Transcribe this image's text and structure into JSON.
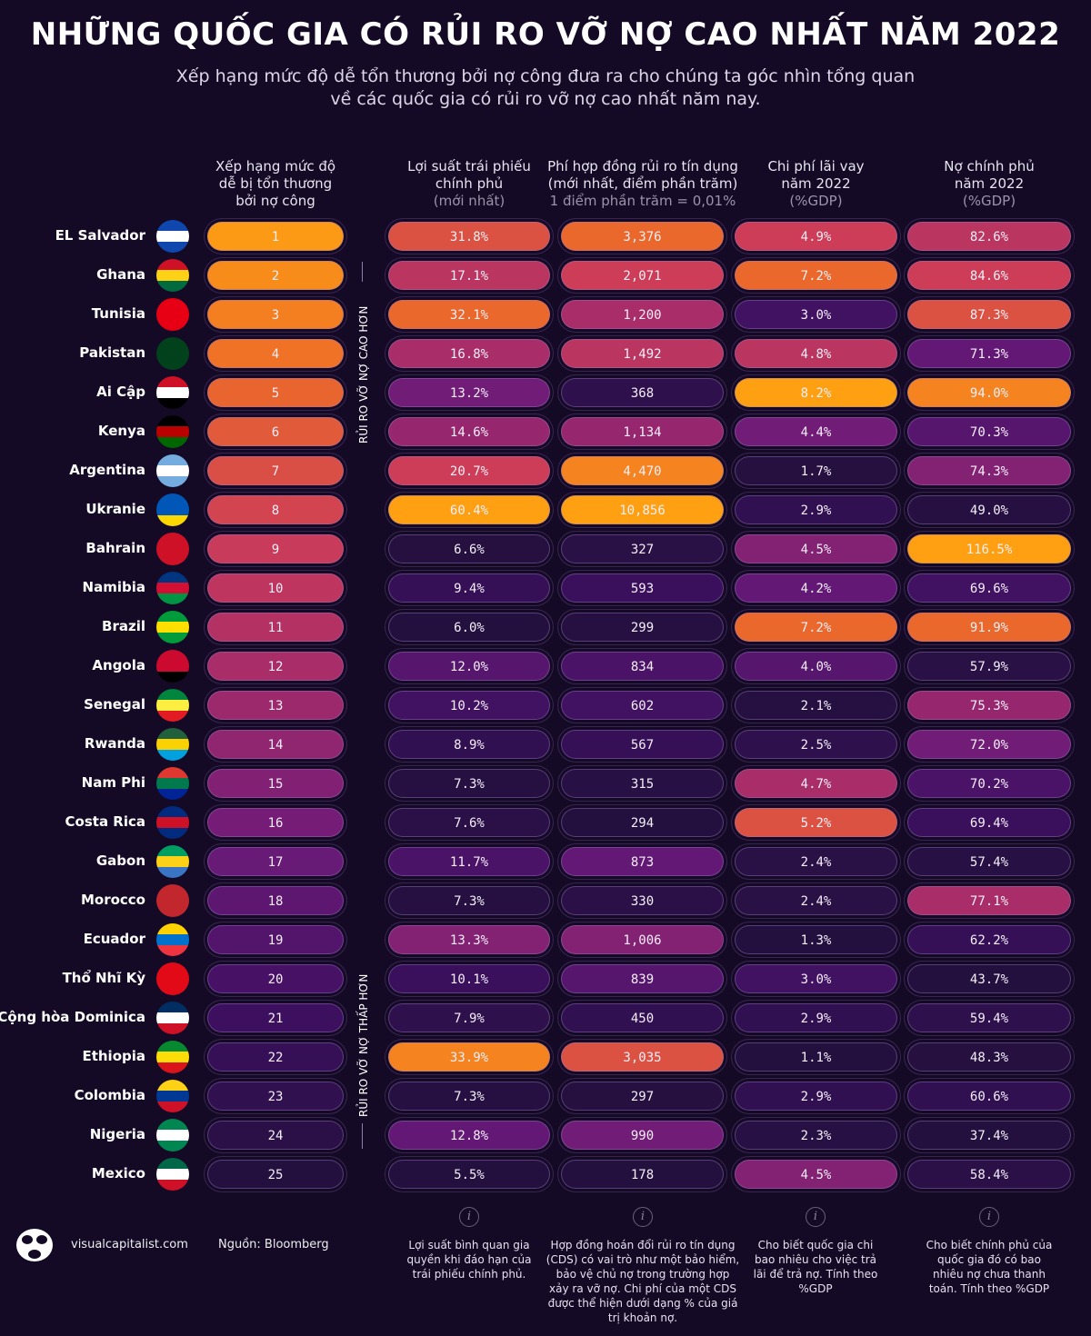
{
  "title": "NHỮNG QUỐC GIA CÓ RỦI RO VỠ NỢ CAO NHẤT NĂM 2022",
  "subtitle": [
    "Xếp hạng mức độ dễ tổn thương bởi nợ công đưa ra cho chúng ta góc nhìn tổng quan",
    "về các quốc gia có rủi ro vỡ nợ cao nhất năm nay."
  ],
  "side_labels": {
    "top": "RỦI RO VỠ NỢ CAO HƠN",
    "bottom": "RỦI RO VỠ NỢ THẤP HƠN"
  },
  "footer": {
    "site": "visualcapitalist.com",
    "source": "Nguồn: Bloomberg",
    "info_icon": "info-icon",
    "info_glyph": "i"
  },
  "colors": {
    "background": "#150a26",
    "scale": [
      "#24103f",
      "#3d1060",
      "#6a1a78",
      "#a02a6c",
      "#cc3c58",
      "#ec6a2a",
      "#ffa012"
    ]
  },
  "chart_data": {
    "type": "table",
    "title": "NHỮNG QUỐC GIA CÓ RỦI RO VỠ NỢ CAO NHẤT NĂM 2022",
    "columns": [
      {
        "key": "rank",
        "lines": [
          "Xếp hạng mức độ",
          "dễ bị tổn thương",
          "bởi nợ công"
        ],
        "sub": "",
        "note": ""
      },
      {
        "key": "yield",
        "lines": [
          "Lợi suất trái phiếu",
          "chính phủ"
        ],
        "sub": "(mới nhất)",
        "note": "Lợi suất bình quan gia quyền khi đáo hạn của trái phiếu chính phủ."
      },
      {
        "key": "cds",
        "lines": [
          "Phí hợp đồng rủi ro tín dụng",
          "(mới nhất, điểm phần trăm)"
        ],
        "sub": "1 điểm phần trăm = 0,01%",
        "note": "Hợp đồng hoán đổi rủi ro tín dụng (CDS) có vai trò như một bảo hiểm, bảo vệ chủ nợ trong trường hợp xảy ra vỡ nợ. Chi phí của một CDS được thể hiện dưới dạng % của giá trị khoản nợ."
      },
      {
        "key": "interest",
        "lines": [
          "Chi phí lãi vay",
          "năm 2022"
        ],
        "sub": "(%GDP)",
        "note": "Cho biết quốc gia chi bao nhiêu cho việc trả lãi để trả nợ. Tính theo %GDP"
      },
      {
        "key": "debt",
        "lines": [
          "Nợ chính phủ",
          "năm 2022"
        ],
        "sub": "(%GDP)",
        "note": "Cho biết chính phủ của quốc gia đó có bao nhiêu nợ chưa thanh toán. Tính theo %GDP"
      }
    ],
    "rows": [
      {
        "country": "EL Salvador",
        "flag": [
          "#0f47af",
          "#ffffff",
          "#0f47af"
        ],
        "rank": "1",
        "yield": "31.8%",
        "cds": "3,376",
        "interest": "4.9%",
        "debt": "82.6%"
      },
      {
        "country": "Ghana",
        "flag": [
          "#ce1126",
          "#fcd116",
          "#006b3f"
        ],
        "rank": "2",
        "yield": "17.1%",
        "cds": "2,071",
        "interest": "7.2%",
        "debt": "84.6%"
      },
      {
        "country": "Tunisia",
        "flag": [
          "#e70013",
          "#e70013",
          "#e70013"
        ],
        "rank": "3",
        "yield": "32.1%",
        "cds": "1,200",
        "interest": "3.0%",
        "debt": "87.3%"
      },
      {
        "country": "Pakistan",
        "flag": [
          "#01411c",
          "#01411c",
          "#01411c"
        ],
        "rank": "4",
        "yield": "16.8%",
        "cds": "1,492",
        "interest": "4.8%",
        "debt": "71.3%"
      },
      {
        "country": "Ai Cập",
        "flag": [
          "#ce1126",
          "#ffffff",
          "#000000"
        ],
        "rank": "5",
        "yield": "13.2%",
        "cds": "368",
        "interest": "8.2%",
        "debt": "94.0%"
      },
      {
        "country": "Kenya",
        "flag": [
          "#000000",
          "#bb0000",
          "#006600"
        ],
        "rank": "6",
        "yield": "14.6%",
        "cds": "1,134",
        "interest": "4.4%",
        "debt": "70.3%"
      },
      {
        "country": "Argentina",
        "flag": [
          "#74acdf",
          "#ffffff",
          "#74acdf"
        ],
        "rank": "7",
        "yield": "20.7%",
        "cds": "4,470",
        "interest": "1.7%",
        "debt": "74.3%"
      },
      {
        "country": "Ukranie",
        "flag": [
          "#0057b7",
          "#0057b7",
          "#ffd700"
        ],
        "rank": "8",
        "yield": "60.4%",
        "cds": "10,856",
        "interest": "2.9%",
        "debt": "49.0%"
      },
      {
        "country": "Bahrain",
        "flag": [
          "#ce1126",
          "#ce1126",
          "#ce1126"
        ],
        "rank": "9",
        "yield": "6.6%",
        "cds": "327",
        "interest": "4.5%",
        "debt": "116.5%"
      },
      {
        "country": "Namibia",
        "flag": [
          "#003580",
          "#d21034",
          "#009543"
        ],
        "rank": "10",
        "yield": "9.4%",
        "cds": "593",
        "interest": "4.2%",
        "debt": "69.6%"
      },
      {
        "country": "Brazil",
        "flag": [
          "#009c3b",
          "#ffdf00",
          "#009c3b"
        ],
        "rank": "11",
        "yield": "6.0%",
        "cds": "299",
        "interest": "7.2%",
        "debt": "91.9%"
      },
      {
        "country": "Angola",
        "flag": [
          "#cc092f",
          "#cc092f",
          "#000000"
        ],
        "rank": "12",
        "yield": "12.0%",
        "cds": "834",
        "interest": "4.0%",
        "debt": "57.9%"
      },
      {
        "country": "Senegal",
        "flag": [
          "#00853f",
          "#fdef42",
          "#e31b23"
        ],
        "rank": "13",
        "yield": "10.2%",
        "cds": "602",
        "interest": "2.1%",
        "debt": "75.3%"
      },
      {
        "country": "Rwanda",
        "flag": [
          "#20603d",
          "#fad201",
          "#00a1de"
        ],
        "rank": "14",
        "yield": "8.9%",
        "cds": "567",
        "interest": "2.5%",
        "debt": "72.0%"
      },
      {
        "country": "Nam Phi",
        "flag": [
          "#de3831",
          "#007a4d",
          "#002395"
        ],
        "rank": "15",
        "yield": "7.3%",
        "cds": "315",
        "interest": "4.7%",
        "debt": "70.2%"
      },
      {
        "country": "Costa Rica",
        "flag": [
          "#002b7f",
          "#ce1126",
          "#002b7f"
        ],
        "rank": "16",
        "yield": "7.6%",
        "cds": "294",
        "interest": "5.2%",
        "debt": "69.4%"
      },
      {
        "country": "Gabon",
        "flag": [
          "#009e60",
          "#fcd116",
          "#3a75c4"
        ],
        "rank": "17",
        "yield": "11.7%",
        "cds": "873",
        "interest": "2.4%",
        "debt": "57.4%"
      },
      {
        "country": "Morocco",
        "flag": [
          "#c1272d",
          "#c1272d",
          "#c1272d"
        ],
        "rank": "18",
        "yield": "7.3%",
        "cds": "330",
        "interest": "2.4%",
        "debt": "77.1%"
      },
      {
        "country": "Ecuador",
        "flag": [
          "#ffd100",
          "#0072ce",
          "#ef3340"
        ],
        "rank": "19",
        "yield": "13.3%",
        "cds": "1,006",
        "interest": "1.3%",
        "debt": "62.2%"
      },
      {
        "country": "Thổ Nhĩ Kỳ",
        "flag": [
          "#e30a17",
          "#e30a17",
          "#e30a17"
        ],
        "rank": "20",
        "yield": "10.1%",
        "cds": "839",
        "interest": "3.0%",
        "debt": "43.7%"
      },
      {
        "country": "Cộng hòa Dominica",
        "flag": [
          "#002d62",
          "#ffffff",
          "#ce1126"
        ],
        "rank": "21",
        "yield": "7.9%",
        "cds": "450",
        "interest": "2.9%",
        "debt": "59.4%"
      },
      {
        "country": "Ethiopia",
        "flag": [
          "#078930",
          "#fcdd09",
          "#da121a"
        ],
        "rank": "22",
        "yield": "33.9%",
        "cds": "3,035",
        "interest": "1.1%",
        "debt": "48.3%"
      },
      {
        "country": "Colombia",
        "flag": [
          "#fcd116",
          "#003893",
          "#ce1126"
        ],
        "rank": "23",
        "yield": "7.3%",
        "cds": "297",
        "interest": "2.9%",
        "debt": "60.6%"
      },
      {
        "country": "Nigeria",
        "flag": [
          "#008751",
          "#ffffff",
          "#008751"
        ],
        "rank": "24",
        "yield": "12.8%",
        "cds": "990",
        "interest": "2.3%",
        "debt": "37.4%"
      },
      {
        "country": "Mexico",
        "flag": [
          "#006847",
          "#ffffff",
          "#ce1126"
        ],
        "rank": "25",
        "yield": "5.5%",
        "cds": "178",
        "interest": "4.5%",
        "debt": "58.4%"
      }
    ]
  }
}
